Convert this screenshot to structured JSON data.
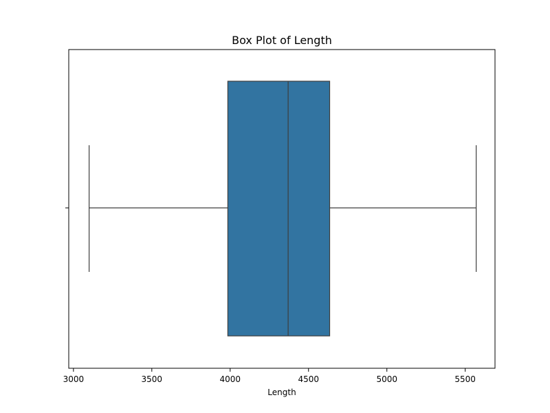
{
  "chart_data": {
    "type": "box",
    "title": "Box Plot of Length",
    "xlabel": "Length",
    "ylabel": "",
    "xlim": [
      2970,
      5690
    ],
    "xticks": [
      3000,
      3500,
      4000,
      4500,
      5000,
      5500
    ],
    "grid": false,
    "legend": "none",
    "series": [
      {
        "whisker_low": 3100,
        "q1": 3985,
        "median": 4370,
        "q3": 4635,
        "whisker_high": 5570
      }
    ],
    "colors": {
      "box_fill": "#3274a1",
      "line": "#3d3d3d",
      "frame": "#000000"
    }
  }
}
